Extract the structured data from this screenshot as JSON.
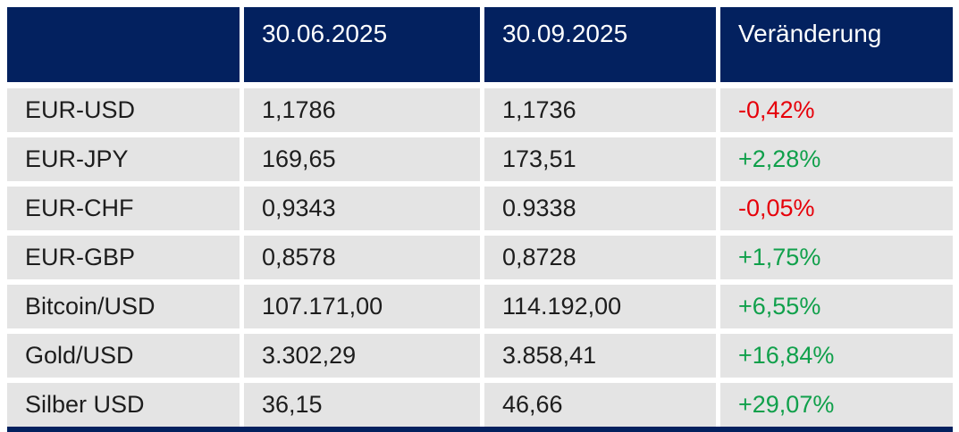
{
  "chart_data": {
    "type": "table",
    "title": "",
    "columns": [
      "",
      "30.06.2025",
      "30.09.2025",
      "Veränderung"
    ],
    "rows": [
      {
        "label": "EUR-USD",
        "value_1": "1,1786",
        "value_2": "1,1736",
        "change": "-0,42%",
        "direction": "down"
      },
      {
        "label": "EUR-JPY",
        "value_1": "169,65",
        "value_2": "173,51",
        "change": "+2,28%",
        "direction": "up"
      },
      {
        "label": "EUR-CHF",
        "value_1": "0,9343",
        "value_2": "0.9338",
        "change": "-0,05%",
        "direction": "down"
      },
      {
        "label": "EUR-GBP",
        "value_1": "0,8578",
        "value_2": "0,8728",
        "change": "+1,75%",
        "direction": "up"
      },
      {
        "label": "Bitcoin/USD",
        "value_1": "107.171,00",
        "value_2": "114.192,00",
        "change": "+6,55%",
        "direction": "up"
      },
      {
        "label": "Gold/USD",
        "value_1": "3.302,29",
        "value_2": "3.858,41",
        "change": "+16,84%",
        "direction": "up"
      },
      {
        "label": "Silber USD",
        "value_1": "36,15",
        "value_2": "46,66",
        "change": "+29,07%",
        "direction": "up"
      }
    ]
  },
  "colors": {
    "header_bg": "#03215f",
    "header_text": "#ffffff",
    "row_bg": "#e4e4e4",
    "text": "#1d1d1d",
    "positive": "#10a04b",
    "negative": "#e6000a"
  }
}
